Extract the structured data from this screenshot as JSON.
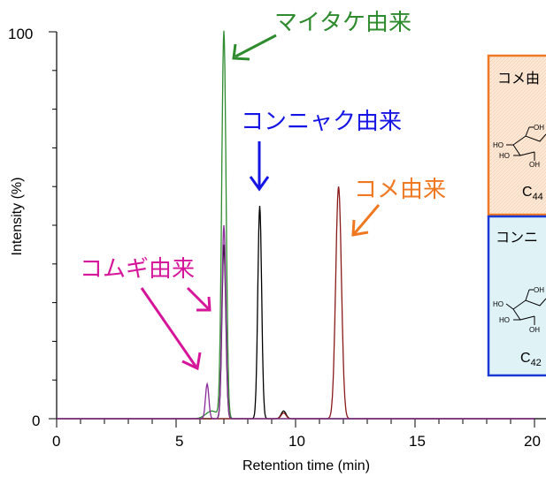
{
  "chart_data": {
    "type": "line",
    "xlabel": "Retention time (min)",
    "ylabel": "Intensity (%)",
    "xlim": [
      0,
      20
    ],
    "ylim": [
      0,
      100
    ],
    "xticks": [
      "0",
      "5",
      "10",
      "15",
      "20"
    ],
    "yticks": [
      "0",
      "100"
    ],
    "grid": false,
    "series": [
      {
        "color": "#2e8b2e",
        "peaks": [
          {
            "x": 7.0,
            "y": 100,
            "w": 0.09
          },
          {
            "x": 6.5,
            "y": 2,
            "w": 0.25
          }
        ]
      },
      {
        "color": "#000000",
        "peaks": [
          {
            "x": 7.0,
            "y": 45,
            "w": 0.08
          },
          {
            "x": 8.5,
            "y": 55,
            "w": 0.08
          },
          {
            "x": 9.5,
            "y": 2,
            "w": 0.1
          }
        ]
      },
      {
        "color": "#8b1a1a",
        "peaks": [
          {
            "x": 11.8,
            "y": 60,
            "w": 0.12
          },
          {
            "x": 9.5,
            "y": 1.5,
            "w": 0.1
          }
        ]
      },
      {
        "color": "#8b2a9b",
        "peaks": [
          {
            "x": 6.3,
            "y": 9,
            "w": 0.07
          },
          {
            "x": 7.0,
            "y": 50,
            "w": 0.08
          }
        ]
      }
    ],
    "annotations": [
      {
        "text": "マイタケ由来",
        "color": "#2e8b2e"
      },
      {
        "text": "コンニャク由来",
        "color": "#1515e6"
      },
      {
        "text": "コメ由来",
        "color": "#f07820"
      },
      {
        "text": "コムギ由来",
        "color": "#d6169a"
      }
    ]
  },
  "inset_boxes": [
    {
      "title": "コメ由",
      "formula_main": "C",
      "formula_sub": "44",
      "border": "#f07820",
      "fill": "#fde9d8",
      "ring_labels": {
        "oh_top": "OH",
        "ho_left": "HO",
        "ho_bottom": "HO",
        "oh_bottom": "OH"
      }
    },
    {
      "title": "コンニ",
      "formula_main": "C",
      "formula_sub": "42",
      "border": "#1a3ad6",
      "fill": "#dff3f7",
      "ring_labels": {
        "oh_top": "OH",
        "ho_left": "HO",
        "ho_bottom": "HO",
        "oh_bottom": "OH"
      }
    }
  ]
}
